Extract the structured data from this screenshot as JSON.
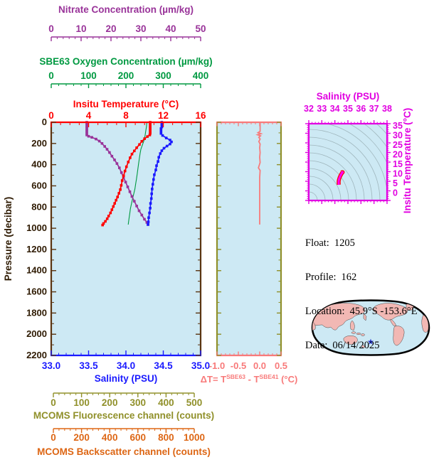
{
  "colors": {
    "background": "#ffffff",
    "plot_bg": "#cde9f4",
    "nitrate": "#993399",
    "oxygen": "#009941",
    "temperature": "#ff0000",
    "salinity": "#1a1aff",
    "pressure_line": "#5a3512",
    "pressure_text": "#2e1a02",
    "delta": "#f87a7a",
    "olive": "#90902a",
    "backscatter": "#dd6614",
    "magenta": "#e100e1",
    "ts_profile": "#ff00ff",
    "ts_profile_edge": "#ff0000",
    "isopycnal": "#9fb6bd",
    "map_land": "#f2b8b4",
    "map_ocean": "#cde9f4",
    "map_outline": "#000000",
    "star": "#2233cc"
  },
  "info": {
    "float_label": "Float:",
    "float_value": "1205",
    "profile_label": "Profile:",
    "profile_value": "162",
    "location_label": "Location:",
    "location_value": "45.9°S -153.6°E",
    "date_label": "Date:",
    "date_value": "06/14/2025"
  },
  "chart_data": [
    {
      "id": "main-profile",
      "type": "line",
      "ylabel": "Pressure (decibar)",
      "ylim": [
        0,
        2200
      ],
      "ytick_step": 200,
      "ytick_minor_step": 100,
      "x_axes": [
        {
          "id": "nitrate",
          "title": "Nitrate Concentration (µm/kg)",
          "lim": [
            0,
            50
          ],
          "ticks": [
            0,
            10,
            20,
            30,
            40,
            50
          ],
          "tick_labels": [
            "0",
            "10",
            "20",
            "30",
            "40",
            "50"
          ],
          "minor_step": 2
        },
        {
          "id": "oxygen",
          "title": "SBE63 Oxygen Concentration (µm/kg)",
          "lim": [
            0,
            400
          ],
          "ticks": [
            0,
            100,
            200,
            300,
            400
          ],
          "tick_labels": [
            "0",
            "100",
            "200",
            "300",
            "400"
          ],
          "minor_step": 20
        },
        {
          "id": "temperature",
          "title": "Insitu Temperature (°C)",
          "lim": [
            0,
            16
          ],
          "ticks": [
            0,
            4,
            8,
            12,
            16
          ],
          "tick_labels": [
            "0",
            "4",
            "8",
            "12",
            "16"
          ],
          "minor_step": 1
        },
        {
          "id": "salinity",
          "title": "Salinity (PSU)",
          "lim": [
            33,
            35
          ],
          "ticks": [
            33,
            33.5,
            34,
            34.5,
            35
          ],
          "tick_labels": [
            "33.0",
            "33.5",
            "34.0",
            "34.5",
            "35.0"
          ],
          "minor_step": 0.1
        }
      ],
      "series": [
        {
          "name": "oxygen",
          "axis": "oxygen",
          "markers": false,
          "points": [
            [
              256,
              0
            ],
            [
              255,
              40
            ],
            [
              253,
              85
            ],
            [
              251,
              130
            ],
            [
              248,
              175
            ],
            [
              244,
              215
            ],
            [
              240,
              255
            ],
            [
              238,
              295
            ],
            [
              236,
              340
            ],
            [
              234,
              390
            ],
            [
              232,
              440
            ],
            [
              230,
              490
            ],
            [
              228,
              540
            ],
            [
              226,
              585
            ],
            [
              224,
              630
            ],
            [
              221,
              675
            ],
            [
              218,
              720
            ],
            [
              215,
              765
            ],
            [
              212,
              815
            ],
            [
              210,
              865
            ],
            [
              208,
              915
            ],
            [
              206,
              965
            ]
          ]
        },
        {
          "name": "nitrate",
          "axis": "nitrate",
          "markers": true,
          "points": [
            [
              11.9,
              0
            ],
            [
              11.9,
              15
            ],
            [
              11.9,
              30
            ],
            [
              11.9,
              45
            ],
            [
              11.9,
              60
            ],
            [
              11.9,
              75
            ],
            [
              11.9,
              90
            ],
            [
              11.9,
              105
            ],
            [
              11.9,
              120
            ],
            [
              12.5,
              132
            ],
            [
              13.6,
              142
            ],
            [
              15.0,
              158
            ],
            [
              16.1,
              178
            ],
            [
              17.0,
              200
            ],
            [
              17.9,
              228
            ],
            [
              18.7,
              255
            ],
            [
              19.5,
              285
            ],
            [
              20.3,
              320
            ],
            [
              21.2,
              355
            ],
            [
              22.0,
              390
            ],
            [
              22.8,
              430
            ],
            [
              23.5,
              475
            ],
            [
              24.2,
              520
            ],
            [
              24.9,
              565
            ],
            [
              25.6,
              610
            ],
            [
              26.3,
              655
            ],
            [
              27.0,
              700
            ],
            [
              27.8,
              745
            ],
            [
              28.6,
              790
            ],
            [
              29.4,
              835
            ],
            [
              30.3,
              875
            ],
            [
              31.2,
              915
            ],
            [
              32.0,
              945
            ],
            [
              32.4,
              965
            ]
          ]
        },
        {
          "name": "temperature",
          "axis": "temperature",
          "markers": true,
          "points": [
            [
              10.6,
              0
            ],
            [
              10.6,
              15
            ],
            [
              10.6,
              30
            ],
            [
              10.6,
              45
            ],
            [
              10.6,
              60
            ],
            [
              10.6,
              75
            ],
            [
              10.6,
              90
            ],
            [
              10.6,
              105
            ],
            [
              10.55,
              120
            ],
            [
              10.3,
              135
            ],
            [
              10.0,
              155
            ],
            [
              9.7,
              180
            ],
            [
              9.45,
              210
            ],
            [
              9.15,
              240
            ],
            [
              8.9,
              270
            ],
            [
              8.65,
              300
            ],
            [
              8.45,
              335
            ],
            [
              8.25,
              375
            ],
            [
              8.05,
              420
            ],
            [
              7.9,
              460
            ],
            [
              7.75,
              505
            ],
            [
              7.6,
              550
            ],
            [
              7.5,
              595
            ],
            [
              7.4,
              635
            ],
            [
              7.25,
              670
            ],
            [
              7.1,
              705
            ],
            [
              6.95,
              735
            ],
            [
              6.8,
              765
            ],
            [
              6.65,
              795
            ],
            [
              6.5,
              825
            ],
            [
              6.35,
              855
            ],
            [
              6.15,
              885
            ],
            [
              6.0,
              910
            ],
            [
              5.8,
              935
            ],
            [
              5.6,
              955
            ],
            [
              5.5,
              970
            ]
          ]
        },
        {
          "name": "salinity",
          "axis": "salinity",
          "markers": true,
          "points": [
            [
              34.48,
              0
            ],
            [
              34.48,
              15
            ],
            [
              34.48,
              30
            ],
            [
              34.48,
              45
            ],
            [
              34.47,
              60
            ],
            [
              34.47,
              75
            ],
            [
              34.47,
              90
            ],
            [
              34.47,
              105
            ],
            [
              34.49,
              125
            ],
            [
              34.54,
              148
            ],
            [
              34.59,
              168
            ],
            [
              34.61,
              185
            ],
            [
              34.59,
              205
            ],
            [
              34.55,
              225
            ],
            [
              34.51,
              245
            ],
            [
              34.48,
              268
            ],
            [
              34.46,
              295
            ],
            [
              34.44,
              330
            ],
            [
              34.43,
              370
            ],
            [
              34.41,
              410
            ],
            [
              34.4,
              450
            ],
            [
              34.38,
              495
            ],
            [
              34.37,
              540
            ],
            [
              34.36,
              585
            ],
            [
              34.35,
              630
            ],
            [
              34.345,
              675
            ],
            [
              34.34,
              720
            ],
            [
              34.33,
              765
            ],
            [
              34.325,
              810
            ],
            [
              34.315,
              855
            ],
            [
              34.305,
              900
            ],
            [
              34.3,
              940
            ],
            [
              34.295,
              965
            ]
          ]
        }
      ]
    },
    {
      "id": "delta-t",
      "type": "line",
      "title_parts": {
        "prefix": "ΔT= T",
        "sup1": "SBE63",
        "mid": " - T",
        "sup2": "SBE41",
        "suffix": " (°C)"
      },
      "xlim": [
        -1,
        0.5
      ],
      "xticks": [
        -1,
        -0.5,
        0,
        0.5
      ],
      "xtick_labels": [
        "-1.0",
        "-0.5",
        "0.0",
        "0.5"
      ],
      "x_minor_step": 0.1,
      "ylim": [
        0,
        2200
      ],
      "series": [
        {
          "name": "delta-t",
          "markers": false,
          "points": [
            [
              0.01,
              0
            ],
            [
              0.01,
              60
            ],
            [
              0.01,
              85
            ],
            [
              -0.04,
              98
            ],
            [
              0.03,
              108
            ],
            [
              -0.05,
              118
            ],
            [
              0.02,
              128
            ],
            [
              -0.02,
              142
            ],
            [
              0.01,
              158
            ],
            [
              -0.02,
              182
            ],
            [
              0.01,
              205
            ],
            [
              0,
              240
            ],
            [
              0.01,
              285
            ],
            [
              0,
              330
            ],
            [
              0.01,
              380
            ],
            [
              -0.03,
              430
            ],
            [
              0.01,
              455
            ],
            [
              0,
              520
            ],
            [
              0,
              600
            ],
            [
              0,
              700
            ],
            [
              0,
              800
            ],
            [
              0,
              900
            ],
            [
              0,
              965
            ]
          ]
        }
      ]
    },
    {
      "id": "ts-diagram",
      "type": "line",
      "title": "Salinity (PSU)",
      "right_label": "Insitu Temperature (°C)",
      "xlim": [
        32,
        38
      ],
      "xticks": [
        32,
        33,
        34,
        35,
        36,
        37,
        38
      ],
      "xtick_labels": [
        "32",
        "33",
        "34",
        "35",
        "36",
        "37",
        "38"
      ],
      "x_minor_step": 0.25,
      "ylim": [
        -4,
        36
      ],
      "yticks": [
        0,
        5,
        10,
        15,
        20,
        25,
        30,
        35
      ],
      "ytick_labels": [
        "0",
        "5",
        "10",
        "15",
        "20",
        "25",
        "30",
        "35"
      ],
      "y_minor_step": 1,
      "isopycnal_radii": [
        12,
        23,
        34,
        45,
        56,
        67,
        78,
        89,
        100,
        111,
        122,
        133,
        144,
        155
      ],
      "series": [
        {
          "name": "ts-profile",
          "points": [
            [
              34.3,
              4.2
            ],
            [
              34.29,
              5.0
            ],
            [
              34.29,
              5.8
            ],
            [
              34.3,
              6.5
            ],
            [
              34.33,
              7.2
            ],
            [
              34.37,
              8.0
            ],
            [
              34.42,
              8.8
            ],
            [
              34.48,
              9.6
            ],
            [
              34.55,
              10.3
            ],
            [
              34.6,
              10.7
            ],
            [
              34.53,
              10.7
            ],
            [
              34.48,
              10.6
            ]
          ]
        }
      ]
    },
    {
      "id": "fluorescence-axis",
      "type": "axis",
      "title": "MCOMS Fluorescence channel (counts)",
      "lim": [
        0,
        500
      ],
      "ticks": [
        0,
        100,
        200,
        300,
        400,
        500
      ],
      "tick_labels": [
        "0",
        "100",
        "200",
        "300",
        "400",
        "500"
      ],
      "minor_step": 20
    },
    {
      "id": "backscatter-axis",
      "type": "axis",
      "title": "MCOMS Backscatter channel (counts)",
      "lim": [
        0,
        1000
      ],
      "ticks": [
        0,
        200,
        400,
        600,
        800,
        1000
      ],
      "tick_labels": [
        "0",
        "200",
        "400",
        "600",
        "800",
        "1000"
      ],
      "minor_step": 40
    }
  ]
}
